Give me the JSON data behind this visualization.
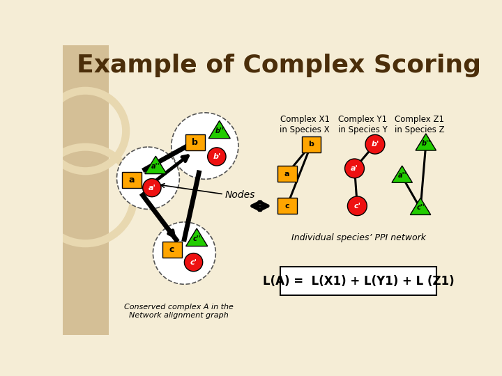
{
  "title": "Example of Complex Scoring",
  "title_fontsize": 26,
  "title_color": "#4B2E0A",
  "bg_color": "#F5EDD6",
  "left_strip_color": "#D4BF96",
  "node_colors": {
    "orange": "#FFA500",
    "red": "#EE1111",
    "green": "#22CC00"
  },
  "formula_text": "L(A) =  L(X1) + L(Y1) + L (Z1)",
  "conserved_text": "Conserved complex A in the\nNetwork alignment graph",
  "individual_text": "Individual species’ PPI network",
  "nodes_label": "Nodes",
  "complex_labels": [
    "Complex X1\nin Species X",
    "Complex Y1\nin Species Y",
    "Complex Z1\nin Species Z"
  ]
}
